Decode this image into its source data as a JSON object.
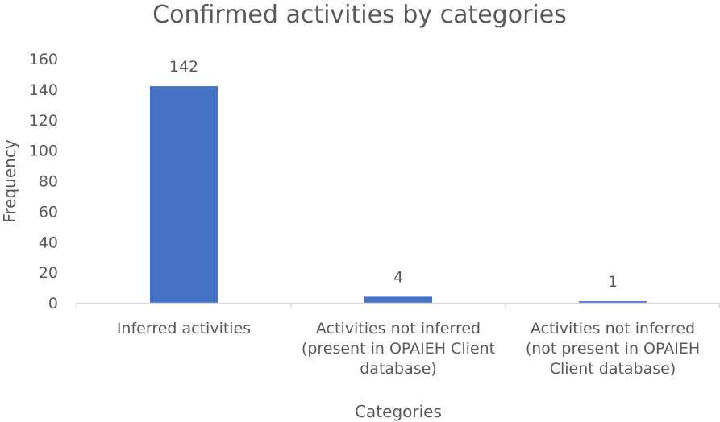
{
  "chart_data": {
    "type": "bar",
    "title": "Confirmed activities by categories",
    "xlabel": "Categories",
    "ylabel": "Frequency",
    "categories": [
      "Inferred activities",
      "Activities not  inferred\n(present in OPAIEH Client\ndatabase)",
      "Activities not inferred\n(not present in OPAIEH\nClient database)"
    ],
    "values": [
      142,
      4,
      1
    ],
    "data_labels": [
      "142",
      "4",
      "1"
    ],
    "ylim": [
      0,
      160
    ],
    "yticks": [
      "0",
      "20",
      "40",
      "60",
      "80",
      "100",
      "120",
      "140",
      "160"
    ],
    "grid": false,
    "legend": "none",
    "bar_color": "#4472C4"
  }
}
